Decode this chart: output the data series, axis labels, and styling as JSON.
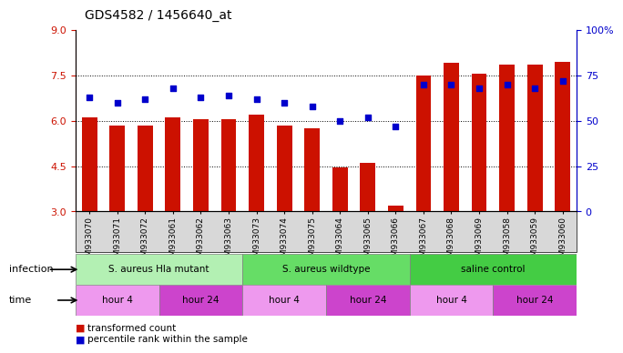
{
  "title": "GDS4582 / 1456640_at",
  "samples": [
    "GSM933070",
    "GSM933071",
    "GSM933072",
    "GSM933061",
    "GSM933062",
    "GSM933063",
    "GSM933073",
    "GSM933074",
    "GSM933075",
    "GSM933064",
    "GSM933065",
    "GSM933066",
    "GSM933067",
    "GSM933068",
    "GSM933069",
    "GSM933058",
    "GSM933059",
    "GSM933060"
  ],
  "bar_values": [
    6.1,
    5.85,
    5.85,
    6.1,
    6.05,
    6.05,
    6.2,
    5.85,
    5.75,
    4.45,
    4.6,
    3.2,
    7.5,
    7.9,
    7.55,
    7.85,
    7.85,
    7.95
  ],
  "dot_values": [
    63,
    60,
    62,
    68,
    63,
    64,
    62,
    60,
    58,
    50,
    52,
    47,
    70,
    70,
    68,
    70,
    68,
    72
  ],
  "bar_color": "#cc1100",
  "dot_color": "#0000cc",
  "ylim_left": [
    3,
    9
  ],
  "ylim_right": [
    0,
    100
  ],
  "yticks_left": [
    3,
    4.5,
    6,
    7.5,
    9
  ],
  "yticks_right": [
    0,
    25,
    50,
    75,
    100
  ],
  "ytick_labels_right": [
    "0",
    "25",
    "50",
    "75",
    "100%"
  ],
  "grid_values": [
    4.5,
    6.0,
    7.5
  ],
  "infection_groups": [
    {
      "label": "S. aureus Hla mutant",
      "start": 0,
      "end": 6
    },
    {
      "label": "S. aureus wildtype",
      "start": 6,
      "end": 12
    },
    {
      "label": "saline control",
      "start": 12,
      "end": 18
    }
  ],
  "infection_colors": [
    "#b3f0b3",
    "#66dd66",
    "#44cc44"
  ],
  "time_groups": [
    {
      "label": "hour 4",
      "start": 0,
      "end": 3
    },
    {
      "label": "hour 24",
      "start": 3,
      "end": 6
    },
    {
      "label": "hour 4",
      "start": 6,
      "end": 9
    },
    {
      "label": "hour 24",
      "start": 9,
      "end": 12
    },
    {
      "label": "hour 4",
      "start": 12,
      "end": 15
    },
    {
      "label": "hour 24",
      "start": 15,
      "end": 18
    }
  ],
  "time_color_light": "#ee99ee",
  "time_color_dark": "#cc44cc",
  "legend_items": [
    {
      "label": "transformed count",
      "color": "#cc1100"
    },
    {
      "label": "percentile rank within the sample",
      "color": "#0000cc"
    }
  ],
  "infection_label": "infection",
  "time_label": "time",
  "bar_width": 0.55,
  "bg_color": "#ffffff",
  "tick_label_color_left": "#cc1100",
  "tick_label_color_right": "#0000cc"
}
